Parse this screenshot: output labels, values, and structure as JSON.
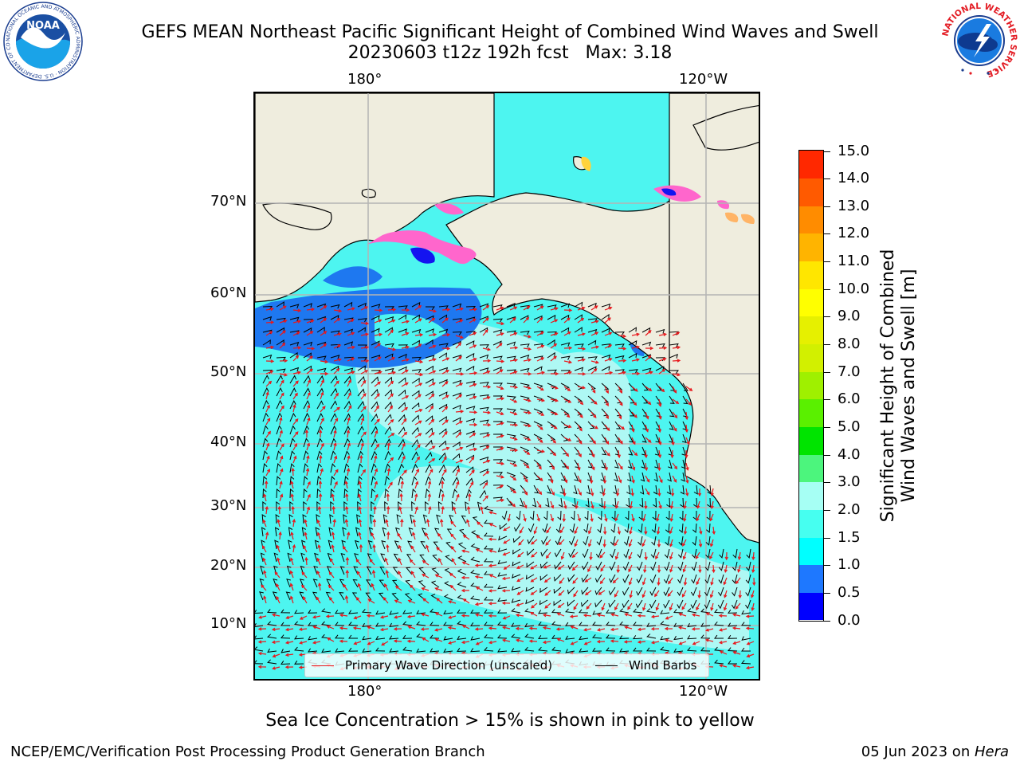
{
  "title": {
    "line1": "GEFS MEAN Northeast Pacific Significant Height of Combined Wind Waves and Swell",
    "line2": "20230603 t12z 192h fcst   Max: 3.18"
  },
  "map": {
    "lon_labels_top": [
      "180°",
      "120°W"
    ],
    "lon_labels_bottom": [
      "180°",
      "120°W"
    ],
    "lat_labels": [
      "70°N",
      "60°N",
      "50°N",
      "40°N",
      "30°N",
      "20°N",
      "10°N"
    ],
    "colors": {
      "land": "#efedde",
      "ocean_base": "#4df5f0",
      "ocean_low": "#1e78f0",
      "ocean_high": "#aef8f4",
      "ice": "#ff66cc",
      "ice_yellow": "#ffd23c",
      "wave_arrow": "#e8181c",
      "wind_barb": "#000000",
      "gridline": "#b4b4b4"
    }
  },
  "legend": {
    "wave_label": "Primary Wave Direction (unscaled)",
    "wind_label": "Wind Barbs"
  },
  "colorbar": {
    "title_line1": "Significant Height of Combined",
    "title_line2": "Wind Waves and Swell [m]",
    "levels": [
      "0.0",
      "0.5",
      "1.0",
      "1.5",
      "2.0",
      "3.0",
      "4.0",
      "5.0",
      "6.0",
      "7.0",
      "8.0",
      "9.0",
      "10.0",
      "11.0",
      "12.0",
      "13.0",
      "14.0",
      "15.0"
    ],
    "colors": [
      "#0000ff",
      "#1e78ff",
      "#00ffff",
      "#46fff0",
      "#a6fff4",
      "#4cf57d",
      "#00e400",
      "#5af000",
      "#9ff000",
      "#d2f000",
      "#e6f000",
      "#ffff00",
      "#ffe600",
      "#ffb400",
      "#ff8c00",
      "#ff5a00",
      "#ff2800"
    ]
  },
  "footnote": "Sea Ice Concentration > 15% is shown in pink to yellow",
  "credit": "NCEP/EMC/Verification Post Processing Product Generation Branch",
  "date_prefix": "05 Jun 2023 on ",
  "date_host": "Hera",
  "logos": {
    "noaa_text": "NOAA",
    "noaa_ring_text": "NATIONAL OCEANIC AND ATMOSPHERIC ADMINISTRATION · U.S. DEPARTMENT OF COMMERCE",
    "nws_ring_text": "NATIONAL WEATHER SERVICE"
  }
}
